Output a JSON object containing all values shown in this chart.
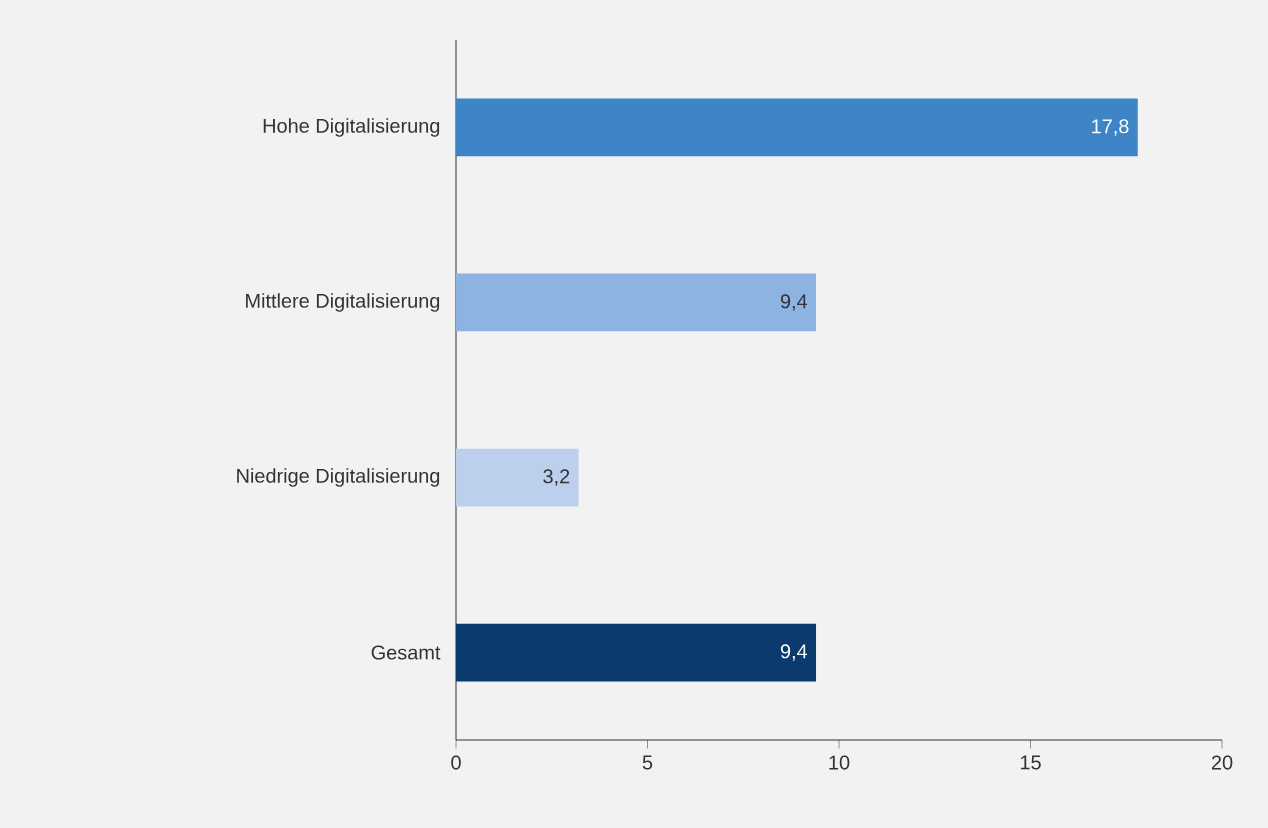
{
  "chart_data": {
    "type": "bar",
    "orientation": "horizontal",
    "categories": [
      "Hohe Digitalisierung",
      "Mittlere Digitalisierung",
      "Niedrige Digitalisierung",
      "Gesamt"
    ],
    "values": [
      17.8,
      9.4,
      3.2,
      9.4
    ],
    "colors": [
      "#3d85c6",
      "#8db3e2",
      "#bcd0ee",
      "#0b3a6f"
    ],
    "value_labels": [
      "17,8",
      "9,4",
      "3,2",
      "9,4"
    ],
    "xlim": [
      0,
      20
    ],
    "xticks": [
      0,
      5,
      10,
      15,
      20
    ],
    "grid": false
  }
}
